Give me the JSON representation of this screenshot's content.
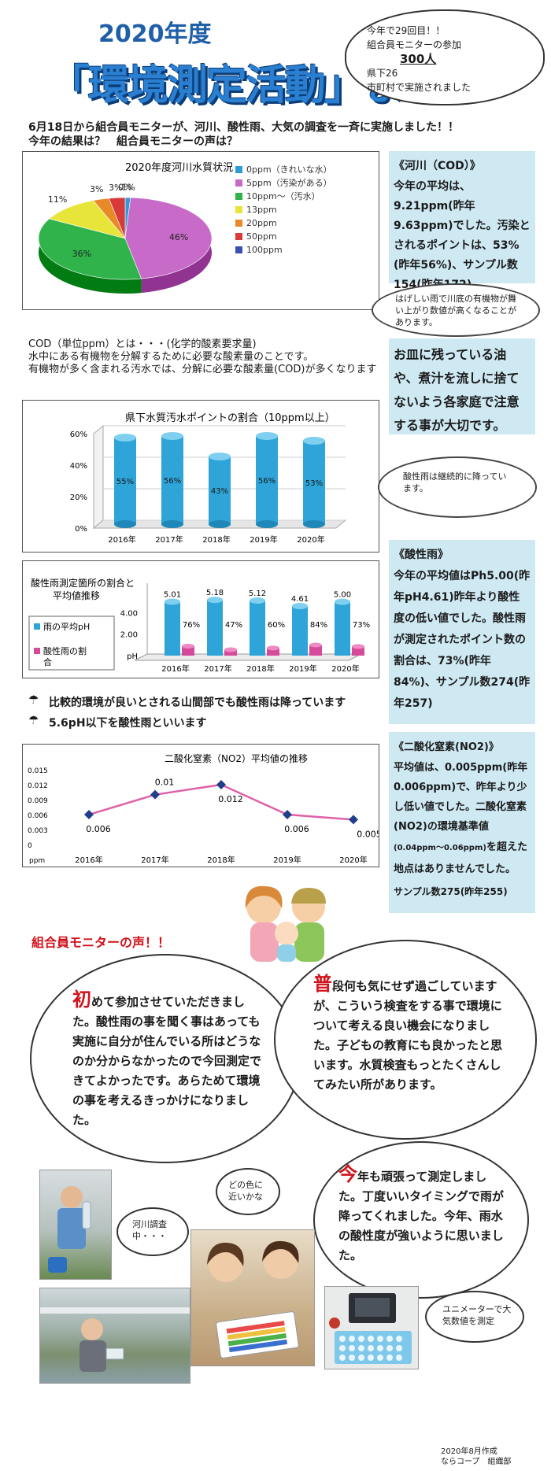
{
  "header": {
    "year": "2020年度",
    "title": "「環境測定活動」まとめ"
  },
  "top_cloud": {
    "line1": "今年で29回目！！",
    "line2": "組合員モニターの参加",
    "count": "300人",
    "line3": "県下26",
    "line4": "市町村で実施されました"
  },
  "intro": {
    "line1": "6月18日から組合員モニターが、河川、酸性雨、大気の調査を一斉に実施しました！！",
    "line2": "今年の結果は？　組合員モニターの声は？"
  },
  "river_pie": {
    "title": "2020年度河川水質状況",
    "slices": [
      {
        "label": "0ppm（きれいな水）",
        "percent": 1,
        "label_text": "1%",
        "color": "#2f9bd6"
      },
      {
        "label": "5ppm（汚染がある）",
        "percent": 46,
        "label_text": "46%",
        "color": "#c86bc8"
      },
      {
        "label": "10ppm～（汚水）",
        "percent": 36,
        "label_text": "36%",
        "color": "#2fb34a"
      },
      {
        "label": "13ppm",
        "percent": 11,
        "label_text": "11%",
        "color": "#e8e53a"
      },
      {
        "label": "20ppm",
        "percent": 3,
        "label_text": "3%",
        "color": "#e88a2a"
      },
      {
        "label": "50ppm",
        "percent": 3,
        "label_text": "3%",
        "color": "#d83a3a"
      },
      {
        "label": "100ppm",
        "percent": 0,
        "label_text": "0%",
        "color": "#3a4fb0"
      }
    ],
    "legend": [
      "0ppm（きれいな水）",
      "5ppm（汚染がある）",
      "10ppm～（汚水）",
      "13ppm",
      "20ppm",
      "50ppm",
      "100ppm"
    ]
  },
  "cod_explain": {
    "line1": "COD（単位ppm）とは・・・(化学的酸素要求量)",
    "line2": "水中にある有機物を分解するために必要な酸素量のことです。",
    "line3": "有機物が多く含まれる汚水では、分解に必要な酸素量(COD)が多くなります"
  },
  "chart_data": [
    {
      "type": "pie",
      "title": "2020年度河川水質状況",
      "categories": [
        "0ppm（きれいな水）",
        "5ppm（汚染がある）",
        "10ppm～（汚水）",
        "13ppm",
        "20ppm",
        "50ppm",
        "100ppm"
      ],
      "values": [
        1,
        46,
        36,
        11,
        3,
        3,
        0
      ],
      "legend": "right"
    },
    {
      "type": "bar",
      "title": "県下水質汚水ポイントの割合（10ppm以上）",
      "categories": [
        "2016年",
        "2017年",
        "2018年",
        "2019年",
        "2020年"
      ],
      "values": [
        55,
        56,
        43,
        56,
        53
      ],
      "value_labels": [
        "55%",
        "56%",
        "43%",
        "56%",
        "53%"
      ],
      "yticks": [
        "0%",
        "20%",
        "40%",
        "60%"
      ],
      "ylim": [
        0,
        60
      ],
      "color": "#2ea4d8"
    },
    {
      "type": "bar",
      "title": "酸性雨測定箇所の割合と平均値推移",
      "categories": [
        "2016年",
        "2017年",
        "2018年",
        "2019年",
        "2020年"
      ],
      "series": [
        {
          "name": "雨の平均pH",
          "values": [
            5.01,
            5.18,
            5.12,
            4.61,
            5.0
          ],
          "labels": [
            "5.01",
            "5.18",
            "5.12",
            "4.61",
            "5.00"
          ],
          "color": "#2ea4d8"
        },
        {
          "name": "酸性雨の割合",
          "values": [
            76,
            47,
            60,
            84,
            73
          ],
          "labels": [
            "76%",
            "47%",
            "60%",
            "84%",
            "73%"
          ],
          "color": "#d64a9a"
        }
      ],
      "yticks": [
        "4.00",
        "2.00",
        "pH"
      ],
      "ylim": [
        0,
        6
      ],
      "legend": "left"
    },
    {
      "type": "line",
      "title": "二酸化窒素（NO2）平均値の推移",
      "categories": [
        "2016年",
        "2017年",
        "2018年",
        "2019年",
        "2020年"
      ],
      "values": [
        0.006,
        0.01,
        0.012,
        0.006,
        0.005
      ],
      "value_labels": [
        "0.006",
        "0.01",
        "0.012",
        "0.006",
        "0.005"
      ],
      "yticks": [
        "0.015",
        "0.012",
        "0.009",
        "0.006",
        "0.003",
        "0"
      ],
      "ylabel": "ppm",
      "ylim": [
        0,
        0.015
      ],
      "color": "#d83a8a"
    }
  ],
  "cod_bar": {
    "title": "県下水質汚水ポイントの割合（10ppm以上）",
    "yticks": [
      "60%",
      "40%",
      "20%",
      "0%"
    ],
    "categories": [
      "2016年",
      "2017年",
      "2018年",
      "2019年",
      "2020年"
    ],
    "labels": [
      "55%",
      "56%",
      "43%",
      "56%",
      "53%"
    ],
    "values": [
      55,
      56,
      43,
      56,
      53
    ]
  },
  "acid_chart": {
    "title_l1": "酸性雨測定箇所の割合と",
    "title_l2": "平均値推移",
    "legend_ph": "雨の平均pH",
    "legend_ratio_l1": "酸性雨の割",
    "legend_ratio_l2": "合",
    "yticks": [
      "4.00",
      "2.00",
      "pH"
    ],
    "categories": [
      "2016年",
      "2017年",
      "2018年",
      "2019年",
      "2020年"
    ],
    "ph_labels": [
      "5.01",
      "5.18",
      "5.12",
      "4.61",
      "5.00"
    ],
    "ph_values": [
      5.01,
      5.18,
      5.12,
      4.61,
      5.0
    ],
    "ratio_labels": [
      "76%",
      "47%",
      "60%",
      "84%",
      "73%"
    ],
    "ratio_values": [
      76,
      47,
      60,
      84,
      73
    ]
  },
  "bullets": {
    "b1": "比較的環境が良いとされる山間部でも酸性雨は降っています",
    "b2": "5.6pH以下を酸性雨といいます"
  },
  "no2_chart": {
    "title": "二酸化窒素（NO2）平均値の推移",
    "yticks": [
      "0.015",
      "0.012",
      "0.009",
      "0.006",
      "0.003",
      "0"
    ],
    "unit": "ppm",
    "categories": [
      "2016年",
      "2017年",
      "2018年",
      "2019年",
      "2020年"
    ],
    "labels": [
      "0.006",
      "0.01",
      "0.012",
      "0.006",
      "0.005"
    ],
    "values": [
      0.006,
      0.01,
      0.012,
      0.006,
      0.005
    ]
  },
  "river_box": {
    "heading": "《河川（COD）》",
    "body": "今年の平均は、9.21ppm(昨年9.63ppm)でした。汚染とされるポイントは、53%(昨年56%)、サンプル数154(昨年172)"
  },
  "river_speech": "はげしい雨で川底の有機物が舞い上がり数値が高くなることがあります。",
  "kitchen_box": "お皿に残っている油や、煮汁を流しに捨てないよう各家庭で注意する事が大切です。",
  "acid_speech": "酸性雨は継続的に降っています。",
  "acid_box": {
    "heading": "《酸性雨》",
    "body": "今年の平均値はPh5.00(昨年pH4.61)昨年より酸性度の低い値でした。酸性雨が測定されたポイント数の割合は、73%(昨年84%)、サンプル数274(昨年257)"
  },
  "no2_box": {
    "heading": "《二酸化窒素(NO2)》",
    "body1": "平均値は、0.005ppm(昨年0.006ppm)で、昨年より少し低い値でした。二酸化窒素(NO2)の環境基準値",
    "range": "(0.04ppm～0.06ppm)",
    "body2": "を超えた地点はありませんでした。",
    "sample": "サンプル数275(昨年255)"
  },
  "voices": {
    "title": "組合員モニターの声！！",
    "v1_first": "初",
    "v1_rest": "めて参加させていただきました。酸性雨の事を聞く事はあっても実施に自分が住んでいる所はどうなのか分からなかったので今回測定できてよかったです。あらためて環境の事を考えるきっかけになりました。",
    "v2_first": "普",
    "v2_rest": "段何も気にせず過ごしていますが、こういう検査をする事で環境について考える良い機会になりました。子どもの教育にも良かったと思います。水質検査もっとたくさんしてみたい所があります。",
    "v3_first": "今",
    "v3_rest": "年も頑張って測定しました。丁度いいタイミングで雨が降ってくれました。今年、雨水の酸性度が強いように思いました。"
  },
  "photo_captions": {
    "river": "河川調査中・・・",
    "color": "どの色に近いかな",
    "meter": "ユニメーターで大気数値を測定"
  },
  "footer": {
    "line1": "2020年8月作成",
    "line2": "ならコープ　組織部"
  }
}
